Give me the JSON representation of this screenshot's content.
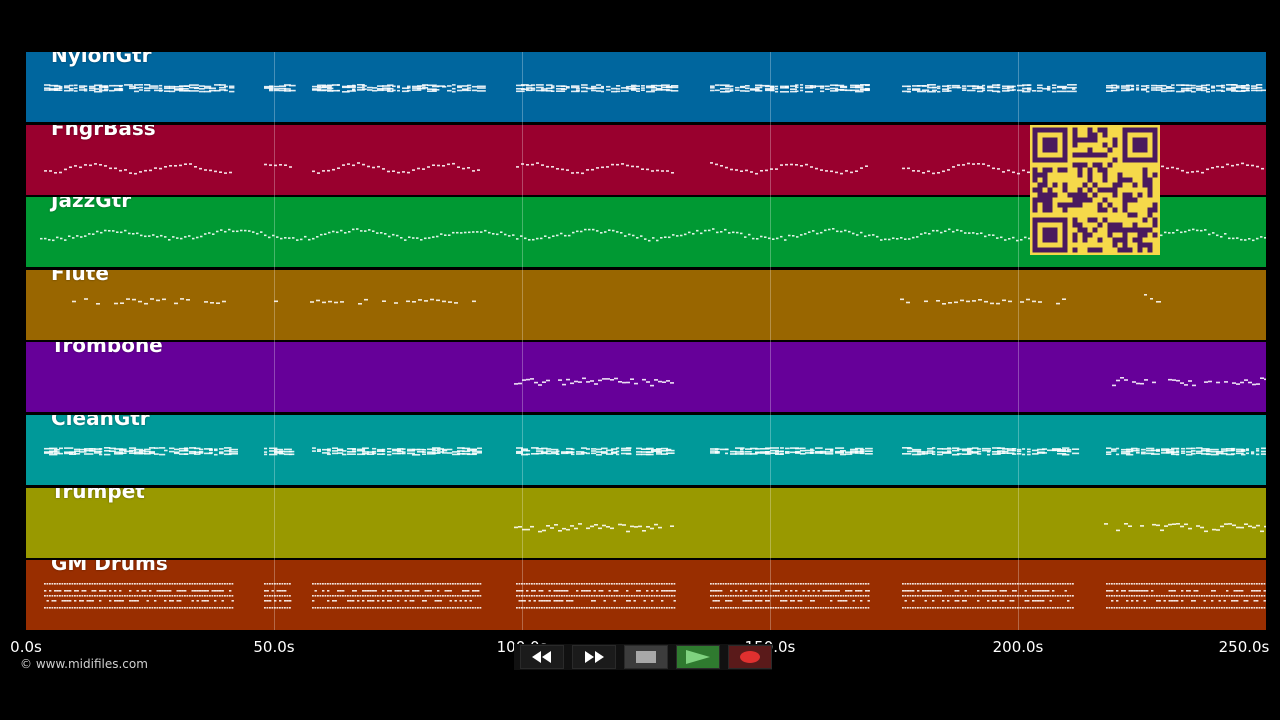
{
  "tracks": [
    {
      "name": "NylonGtr",
      "color": "#00669e",
      "pattern": "chords"
    },
    {
      "name": "FngrBass",
      "color": "#99002e",
      "pattern": "bass"
    },
    {
      "name": "JazzGtr",
      "color": "#009933",
      "pattern": "melody"
    },
    {
      "name": "Flute",
      "color": "#996600",
      "pattern": "sparse"
    },
    {
      "name": "Trombone",
      "color": "#660099",
      "pattern": "brass"
    },
    {
      "name": "CleanGtr",
      "color": "#009999",
      "pattern": "chords"
    },
    {
      "name": "Trumpet",
      "color": "#999900",
      "pattern": "brass"
    },
    {
      "name": "GM Drums",
      "color": "#992e00",
      "pattern": "drums"
    }
  ],
  "timeline": {
    "ticks": [
      "0.0s",
      "50.0s",
      "100.0s",
      "150.0s",
      "200.0s",
      "250.0s"
    ]
  },
  "copyright": "© www.midifiles.com",
  "transport": [
    {
      "name": "rewind-button",
      "icon": "rewind-icon",
      "bg": "#1b1b1b"
    },
    {
      "name": "fast-forward-button",
      "icon": "fast-forward-icon",
      "bg": "#1b1b1b"
    },
    {
      "name": "stop-button",
      "icon": "stop-icon",
      "bg": "#3c3c3c"
    },
    {
      "name": "play-button",
      "icon": "play-icon",
      "bg": "#2f7a2f"
    },
    {
      "name": "record-button",
      "icon": "record-icon",
      "bg": "#5a1a1a"
    }
  ],
  "qr": {
    "icon": "qr-code-icon",
    "color": "#f5d94a",
    "module": "#4a1a5e"
  }
}
